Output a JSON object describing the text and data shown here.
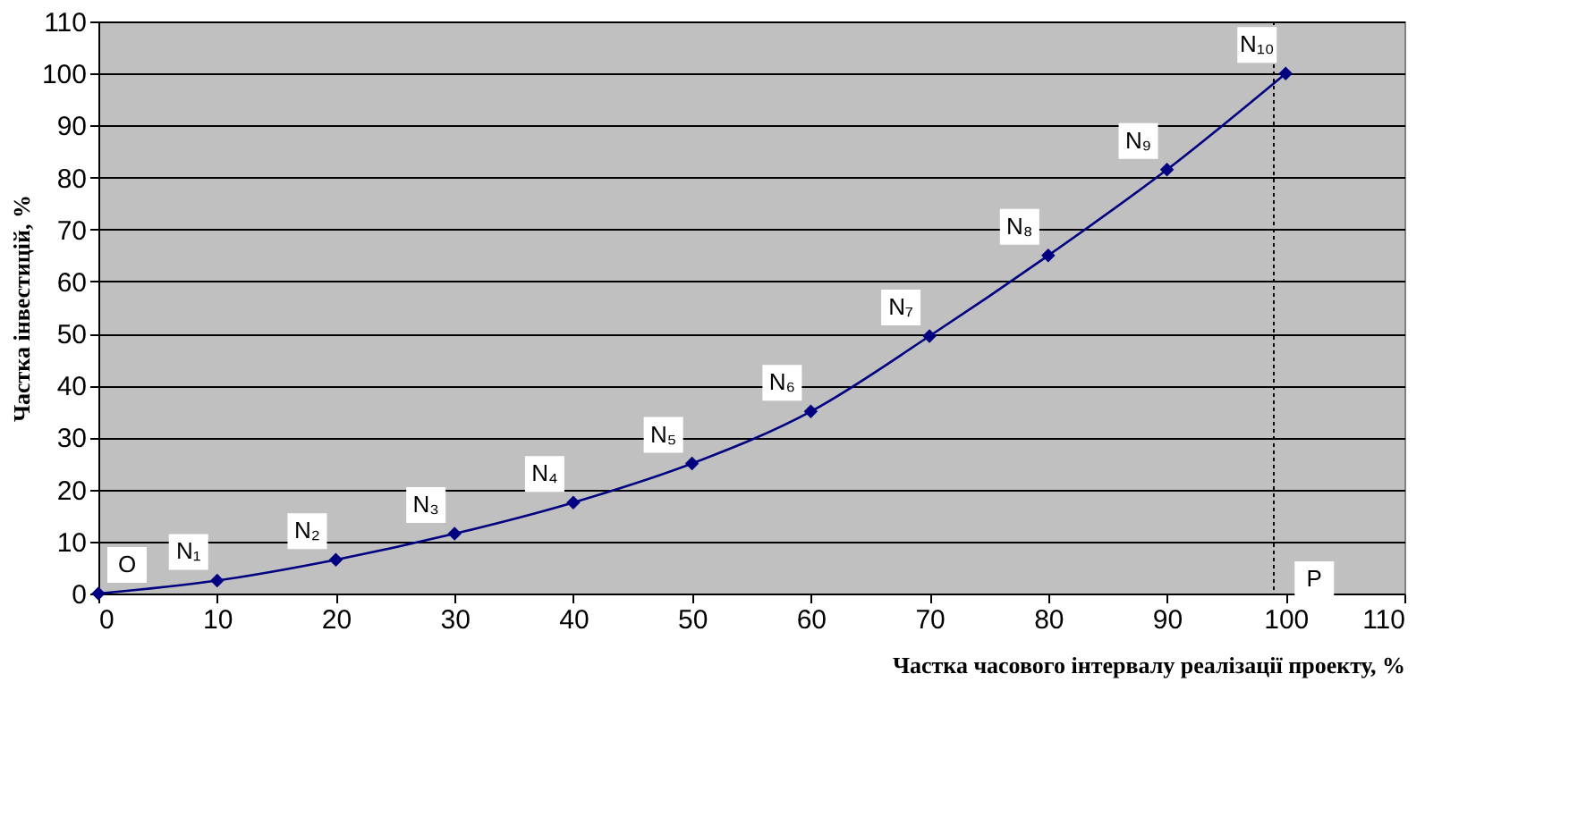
{
  "chart_data": {
    "type": "line",
    "xlabel": "Частка часового інтервалу реалізації проекту, %",
    "ylabel": "Частка інвестицій, %",
    "x": [
      0,
      10,
      20,
      30,
      40,
      50,
      60,
      70,
      80,
      90,
      100
    ],
    "series": [
      {
        "color": "#000080",
        "values": [
          0,
          2.5,
          6.5,
          11.5,
          17.5,
          25,
          35,
          49.5,
          65,
          81.5,
          100
        ]
      }
    ],
    "xlim": [
      0,
      110
    ],
    "xticks": [
      0,
      10,
      20,
      30,
      40,
      50,
      60,
      70,
      80,
      90,
      100,
      110
    ],
    "ylim": [
      0,
      110
    ],
    "yticks": [
      0,
      10,
      20,
      30,
      40,
      50,
      60,
      70,
      80,
      90,
      100,
      110
    ],
    "grid": "y",
    "legend": false,
    "marker": "diamond",
    "line_style": "solid",
    "ref_lines": [
      {
        "axis": "x",
        "value": 99,
        "line_style": "dotted",
        "color": "#000000"
      }
    ],
    "annotations": [
      {
        "text": "O",
        "x": 0,
        "y": 0
      },
      {
        "text": "N₁",
        "x": 10,
        "y": 2.5
      },
      {
        "text": "N₂",
        "x": 20,
        "y": 6.5
      },
      {
        "text": "N₃",
        "x": 30,
        "y": 11.5
      },
      {
        "text": "N₄",
        "x": 40,
        "y": 17.5
      },
      {
        "text": "N₅",
        "x": 50,
        "y": 25
      },
      {
        "text": "N₆",
        "x": 60,
        "y": 35
      },
      {
        "text": "N₇",
        "x": 70,
        "y": 49.5
      },
      {
        "text": "N₈",
        "x": 80,
        "y": 65
      },
      {
        "text": "N₉",
        "x": 90,
        "y": 81.5
      },
      {
        "text": "N₁₀",
        "x": 100,
        "y": 100
      },
      "P"
    ]
  }
}
